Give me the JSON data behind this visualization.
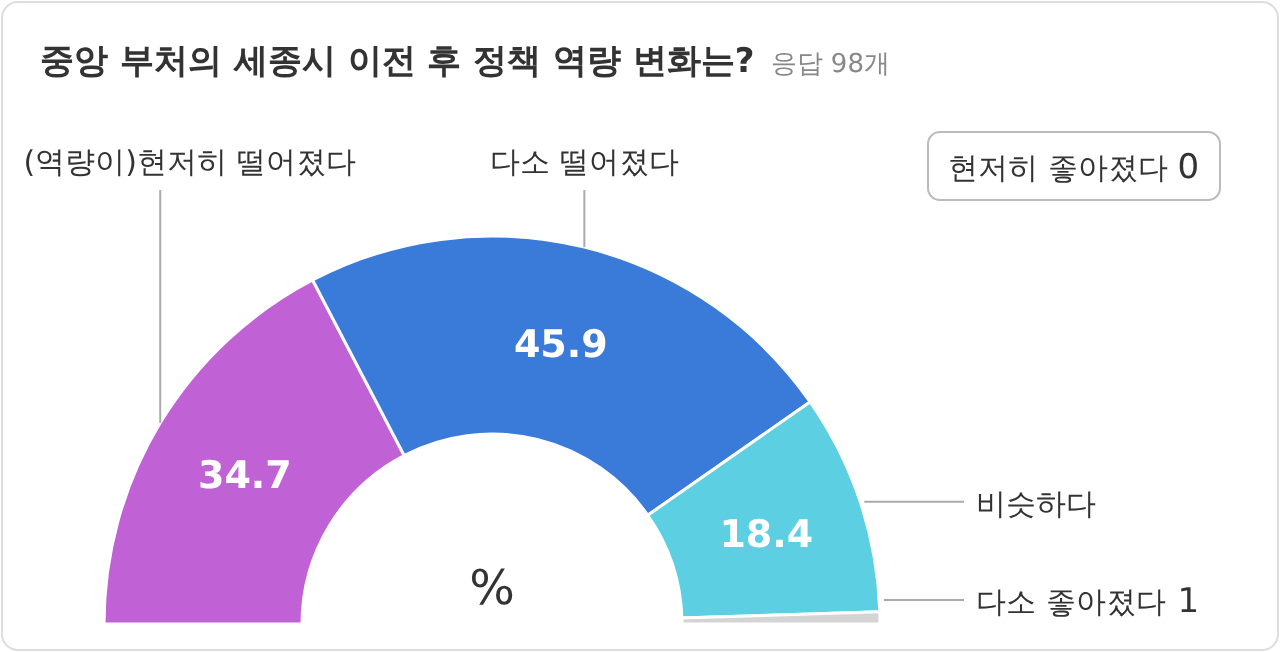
{
  "chart_data": {
    "type": "donut",
    "title": "중앙 부처의 세종시 이전 후 정책 역량 변화는?",
    "subtitle": "응답 98개",
    "categories": [
      "(역량이)현저히 떨어졌다",
      "다소 떨어졌다",
      "비슷하다",
      "다소 좋아졌다",
      "현저히 좋아졌다"
    ],
    "values": [
      34.7,
      45.9,
      18.4,
      1,
      0
    ],
    "colors": [
      "#c062d6",
      "#3a7ad8",
      "#5ccfe2",
      "#d4d4d4",
      "#e8e8e8"
    ],
    "value_labels": [
      "34.7",
      "45.9",
      "18.4",
      "1",
      "0"
    ],
    "annotations": [
      "%"
    ]
  }
}
